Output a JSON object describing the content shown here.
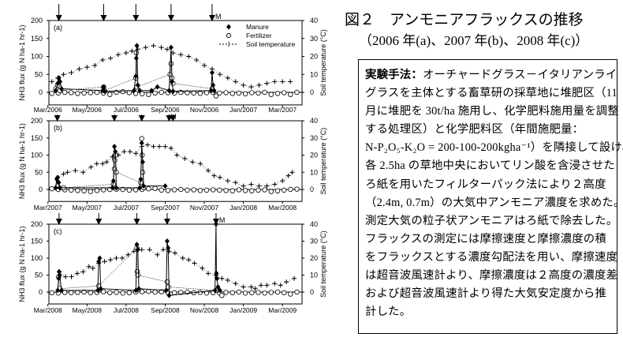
{
  "title": {
    "line1": "図２　アンモニアフラックスの推移",
    "line2": "（2006 年(a)、2007 年(b)、2008 年(c)）"
  },
  "method": {
    "heading": "実験手法：",
    "lines": [
      "オーチャードグラス－イタリアンライ",
      "グラスを主体とする畜草研の採草地に堆肥区（11",
      "月に堆肥を 30t/ha 施用し、化学肥料施用量を調整",
      "する処理区）と化学肥料区（年間施肥量：",
      "N-P₂O₅-K₂O = 200-100-200kgha⁻¹）を隣接して設け、",
      "各 2.5ha の草地中央においてリン酸を含浸させた",
      "ろ紙を用いたフィルターパック法により２高度",
      "（2.4m, 0.7m）の大気中アンモニア濃度を求めた。",
      "測定大気の粒子状アンモニアはろ紙で除去した。",
      "フラックスの測定には摩擦速度と摩擦濃度の積",
      "をフラックスとする濃度勾配法を用い、摩擦速度",
      "は超音波風速計より、摩擦濃度は２高度の濃度差",
      "および超音波風速計より得た大気安定度から推",
      "計した。"
    ]
  },
  "chart_data": [
    {
      "type": "scatter",
      "panel_label": "(a)",
      "ylabel": "NH3 flux (g N ha-1 hr-1)",
      "y2label": "Soil temperature (°C)",
      "ylim": [
        -35,
        200
      ],
      "y2lim": [
        -7,
        40
      ],
      "yticks": [
        0,
        50,
        100,
        150,
        200
      ],
      "y2ticks": [
        0,
        10,
        20,
        30,
        40
      ],
      "xlim_months_from_start": [
        0.05,
        13
      ],
      "xticks": [
        "Mar/2006",
        "May/2006",
        "Jul/2006",
        "Sep/2006",
        "Nov/2006",
        "Jan/2007",
        "Mar/2007"
      ],
      "legend": {
        "placement": "top-right",
        "entries": [
          "Manure",
          "Fertilizer",
          "Soil temperature"
        ]
      },
      "application_arrows": [
        0.56,
        2.85,
        4.5,
        6.3,
        8.4
      ],
      "manure_marker_label": "M",
      "manure_marker_at": 8.4,
      "manure": [
        [
          0.4,
          5
        ],
        [
          0.5,
          25
        ],
        [
          0.56,
          40
        ],
        [
          0.62,
          30
        ],
        [
          0.7,
          10
        ],
        [
          2.8,
          5
        ],
        [
          2.85,
          15
        ],
        [
          2.9,
          3
        ],
        [
          4.4,
          5
        ],
        [
          4.5,
          45
        ],
        [
          4.52,
          95
        ],
        [
          4.55,
          130
        ],
        [
          4.6,
          20
        ],
        [
          4.7,
          5
        ],
        [
          5.3,
          5
        ],
        [
          5.6,
          15
        ],
        [
          6.2,
          5
        ],
        [
          6.3,
          125
        ],
        [
          6.35,
          30
        ],
        [
          6.4,
          3
        ],
        [
          8.35,
          5
        ],
        [
          8.4,
          55
        ],
        [
          8.45,
          20
        ],
        [
          8.5,
          5
        ]
      ],
      "fertilizer": [
        [
          0.4,
          10
        ],
        [
          0.5,
          20
        ],
        [
          0.6,
          5
        ],
        [
          2.85,
          15
        ],
        [
          2.9,
          5
        ],
        [
          4.5,
          40
        ],
        [
          4.52,
          110
        ],
        [
          4.55,
          15
        ],
        [
          6.25,
          50
        ],
        [
          6.3,
          80
        ],
        [
          6.35,
          40
        ],
        [
          6.4,
          25
        ],
        [
          8.4,
          10
        ],
        [
          8.6,
          -10
        ]
      ],
      "fertilizer_baseline": {
        "start": 0.2,
        "step": 0.33,
        "values": [
          -3,
          -2,
          0,
          -1,
          -3,
          -2,
          -1,
          0,
          -2,
          -6,
          0,
          2,
          -1,
          -3,
          -4,
          -6,
          -2,
          0,
          -1,
          -2,
          0,
          -1,
          -2,
          -3,
          -1,
          0,
          -2,
          -1,
          -3,
          -2,
          -4,
          -1,
          -2,
          0,
          -6,
          -3,
          -1,
          -6,
          0
        ]
      },
      "soil_temperature": [
        [
          0.2,
          6
        ],
        [
          0.5,
          8
        ],
        [
          0.8,
          10
        ],
        [
          1.2,
          11
        ],
        [
          1.6,
          13
        ],
        [
          2,
          14
        ],
        [
          2.4,
          15
        ],
        [
          2.8,
          18
        ],
        [
          3.2,
          19
        ],
        [
          3.6,
          21
        ],
        [
          4,
          22
        ],
        [
          4.3,
          23
        ],
        [
          4.6,
          24
        ],
        [
          5,
          25
        ],
        [
          5.4,
          26
        ],
        [
          5.8,
          25
        ],
        [
          6.1,
          24
        ],
        [
          6.4,
          22
        ],
        [
          6.8,
          21
        ],
        [
          7.2,
          20
        ],
        [
          7.6,
          18
        ],
        [
          8,
          15
        ],
        [
          8.4,
          13
        ],
        [
          8.8,
          10
        ],
        [
          9.2,
          8
        ],
        [
          9.6,
          6
        ],
        [
          10,
          4
        ],
        [
          10.4,
          3
        ],
        [
          10.8,
          4
        ],
        [
          11.2,
          5
        ],
        [
          11.6,
          6
        ],
        [
          12,
          6
        ],
        [
          12.4,
          6
        ]
      ]
    },
    {
      "type": "scatter",
      "panel_label": "(b)",
      "ylabel": "NH3 flux (g N ha-1 hr-1)",
      "y2label": "Soil temperature (°C)",
      "ylim": [
        -35,
        200
      ],
      "y2lim": [
        -7,
        40
      ],
      "yticks": [
        0,
        50,
        100,
        150,
        200
      ],
      "y2ticks": [
        0,
        10,
        20,
        30,
        40
      ],
      "xlim_months_from_start": [
        0.05,
        13
      ],
      "xticks": [
        "Mar/2007",
        "May/2007",
        "Jul/2007",
        "Sep/2007",
        "Nov/2007",
        "Jan/2008",
        "Mar/2008"
      ],
      "application_arrows": [
        0.48,
        3.4,
        4.8,
        6.2,
        6.4
      ],
      "manure_marker_label": "M",
      "manure_marker_at": 6.1,
      "manure": [
        [
          0.4,
          5
        ],
        [
          0.45,
          30
        ],
        [
          0.5,
          35
        ],
        [
          0.55,
          20
        ],
        [
          0.6,
          5
        ],
        [
          3.3,
          5
        ],
        [
          3.35,
          25
        ],
        [
          3.4,
          125
        ],
        [
          3.45,
          110
        ],
        [
          3.5,
          5
        ],
        [
          4.7,
          5
        ],
        [
          4.75,
          30
        ],
        [
          4.8,
          135
        ],
        [
          4.85,
          80
        ],
        [
          4.9,
          10
        ],
        [
          6,
          10
        ]
      ],
      "fertilizer": [
        [
          0.5,
          10
        ],
        [
          0.8,
          5
        ],
        [
          3.35,
          15
        ],
        [
          3.4,
          60
        ],
        [
          3.42,
          85
        ],
        [
          3.45,
          100
        ],
        [
          3.5,
          50
        ],
        [
          4.75,
          20
        ],
        [
          4.8,
          148
        ],
        [
          4.82,
          100
        ],
        [
          4.85,
          50
        ],
        [
          4.9,
          5
        ]
      ],
      "fertilizer_baseline": {
        "start": 0.2,
        "step": 0.33,
        "values": [
          2,
          0,
          -1,
          -2,
          -3,
          -4,
          -6,
          -3,
          -1,
          0,
          1,
          0,
          -2,
          -1,
          0,
          2,
          3,
          -2,
          -3,
          -1,
          0,
          -2,
          -1,
          -3,
          -2,
          -1,
          -2,
          -3,
          -4,
          -1,
          -3,
          -4,
          -2,
          -1,
          -6,
          -4,
          -2,
          0,
          1
        ]
      },
      "soil_temperature": [
        [
          0.5,
          7
        ],
        [
          0.8,
          9
        ],
        [
          1,
          10
        ],
        [
          1.4,
          11
        ],
        [
          1.8,
          10
        ],
        [
          2.2,
          13
        ],
        [
          2.5,
          15
        ],
        [
          2.8,
          15
        ],
        [
          3,
          16
        ],
        [
          3.3,
          19
        ],
        [
          3.6,
          20
        ],
        [
          3.9,
          22
        ],
        [
          4.2,
          22
        ],
        [
          4.5,
          21
        ],
        [
          4.8,
          25
        ],
        [
          5.1,
          26
        ],
        [
          5.4,
          25
        ],
        [
          5.7,
          25
        ],
        [
          6,
          25
        ],
        [
          6.3,
          24
        ],
        [
          6.6,
          20
        ],
        [
          7,
          18
        ],
        [
          7.4,
          16
        ],
        [
          7.8,
          15
        ],
        [
          8.2,
          11
        ],
        [
          8.5,
          8
        ],
        [
          8.8,
          7
        ],
        [
          9.2,
          5
        ],
        [
          9.6,
          4
        ],
        [
          10,
          2
        ],
        [
          10.4,
          3
        ],
        [
          10.8,
          2
        ],
        [
          11.2,
          2
        ],
        [
          11.6,
          3
        ],
        [
          12,
          5
        ],
        [
          12.3,
          8
        ],
        [
          12.5,
          10
        ]
      ]
    },
    {
      "type": "scatter",
      "panel_label": "(c)",
      "ylabel": "NH3 flux (g N ha-1 hr-1)",
      "y2label": "Soil temperature (°C)",
      "ylim": [
        -35,
        200
      ],
      "y2lim": [
        -7,
        40
      ],
      "yticks": [
        0,
        50,
        100,
        150,
        200
      ],
      "y2ticks": [
        0,
        10,
        20,
        30,
        40
      ],
      "xlim_months_from_start": [
        0.05,
        13
      ],
      "xticks": [
        "Mar/2008",
        "May/2008",
        "Jul/2008",
        "Sep/2008",
        "Nov/2008",
        "Jan/2009",
        "Mar/2009"
      ],
      "application_arrows": [
        0.57,
        2.6,
        4.55,
        6.1,
        8.6
      ],
      "manure_marker_label": "M",
      "manure_marker_at": 8.6,
      "manure": [
        [
          0.5,
          5
        ],
        [
          0.55,
          40
        ],
        [
          0.57,
          60
        ],
        [
          0.6,
          50
        ],
        [
          0.7,
          5
        ],
        [
          2.55,
          5
        ],
        [
          2.6,
          90
        ],
        [
          2.65,
          100
        ],
        [
          2.7,
          10
        ],
        [
          4.5,
          5
        ],
        [
          4.55,
          140
        ],
        [
          4.6,
          125
        ],
        [
          4.65,
          10
        ],
        [
          6.05,
          5
        ],
        [
          6.1,
          150
        ],
        [
          6.15,
          130
        ],
        [
          6.2,
          -10
        ],
        [
          8.55,
          5
        ],
        [
          8.6,
          200
        ],
        [
          8.62,
          55
        ],
        [
          8.65,
          40
        ],
        [
          8.7,
          15
        ],
        [
          8.8,
          5
        ]
      ],
      "fertilizer": [
        [
          0.55,
          45
        ],
        [
          0.6,
          10
        ],
        [
          2.6,
          18
        ],
        [
          4.55,
          130
        ],
        [
          4.57,
          60
        ],
        [
          4.6,
          50
        ],
        [
          6.1,
          30
        ],
        [
          6.15,
          15
        ],
        [
          8.6,
          5
        ],
        [
          8.9,
          -10
        ]
      ],
      "fertilizer_baseline": {
        "start": 0.2,
        "step": 0.33,
        "values": [
          -2,
          -3,
          -1,
          -2,
          -1,
          0,
          -2,
          -1,
          1,
          -2,
          -1,
          -3,
          -2,
          0,
          1,
          2,
          0,
          1,
          -1,
          -2,
          -1,
          0,
          -2,
          -1,
          -3,
          -2,
          -3,
          -1,
          -2,
          0,
          -3,
          -2,
          -1,
          -3,
          -1,
          0,
          -2,
          -6,
          0
        ]
      },
      "soil_temperature": [
        [
          0.6,
          12
        ],
        [
          0.9,
          9
        ],
        [
          1.2,
          9
        ],
        [
          1.5,
          11
        ],
        [
          1.8,
          12
        ],
        [
          2.1,
          15
        ],
        [
          2.3,
          14
        ],
        [
          2.6,
          17
        ],
        [
          2.9,
          18
        ],
        [
          3.2,
          19
        ],
        [
          3.5,
          20
        ],
        [
          3.8,
          20
        ],
        [
          4.1,
          22
        ],
        [
          4.4,
          24
        ],
        [
          4.8,
          25
        ],
        [
          5.2,
          25
        ],
        [
          5.6,
          22
        ],
        [
          5.9,
          25
        ],
        [
          6.2,
          24
        ],
        [
          6.5,
          23
        ],
        [
          6.9,
          20
        ],
        [
          7.2,
          19
        ],
        [
          7.5,
          17
        ],
        [
          7.9,
          14
        ],
        [
          8.2,
          11
        ],
        [
          8.6,
          10
        ],
        [
          8.9,
          8
        ],
        [
          9.2,
          7
        ],
        [
          9.6,
          5
        ],
        [
          10,
          3
        ],
        [
          10.4,
          3
        ],
        [
          10.6,
          2
        ],
        [
          10.9,
          4
        ],
        [
          11.2,
          4
        ],
        [
          11.6,
          5
        ],
        [
          11.9,
          4
        ],
        [
          12.2,
          6
        ],
        [
          12.6,
          8
        ]
      ]
    }
  ]
}
